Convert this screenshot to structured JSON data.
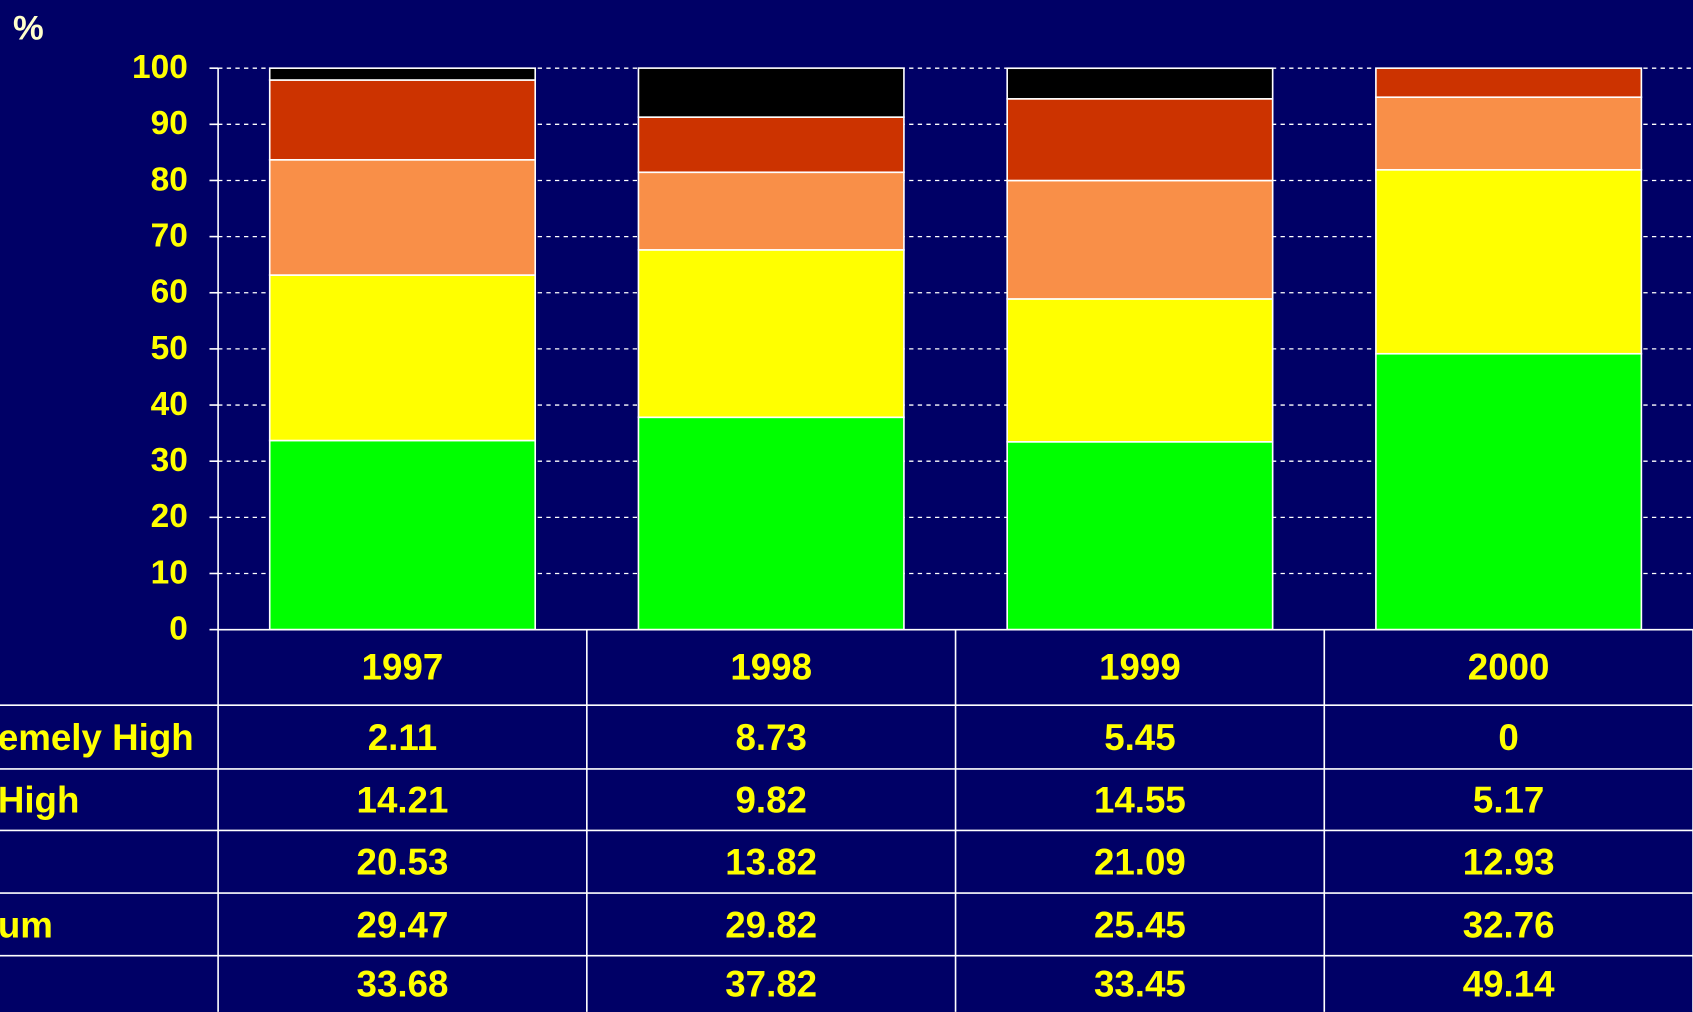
{
  "chart_data": {
    "type": "stacked_bar",
    "ylabel": "%",
    "categories": [
      "1997",
      "1998",
      "1999",
      "2000"
    ],
    "ylim": [
      0,
      100
    ],
    "yticks": [
      0,
      10,
      20,
      30,
      40,
      50,
      60,
      70,
      80,
      90,
      100
    ],
    "grid": true,
    "series": [
      {
        "name": "emely High",
        "color": "#000000",
        "values": [
          2.11,
          8.73,
          5.45,
          0
        ]
      },
      {
        "name": "High",
        "color": "#cc3300",
        "values": [
          14.21,
          9.82,
          14.55,
          5.17
        ]
      },
      {
        "name": null,
        "color": "#f98f48",
        "values": [
          20.53,
          13.82,
          21.09,
          12.93
        ]
      },
      {
        "name": "um",
        "color": "#ffff00",
        "values": [
          29.47,
          29.82,
          25.45,
          32.76
        ]
      },
      {
        "name": null,
        "color": "#00ff00",
        "values": [
          33.68,
          37.82,
          33.45,
          49.14
        ]
      }
    ]
  }
}
